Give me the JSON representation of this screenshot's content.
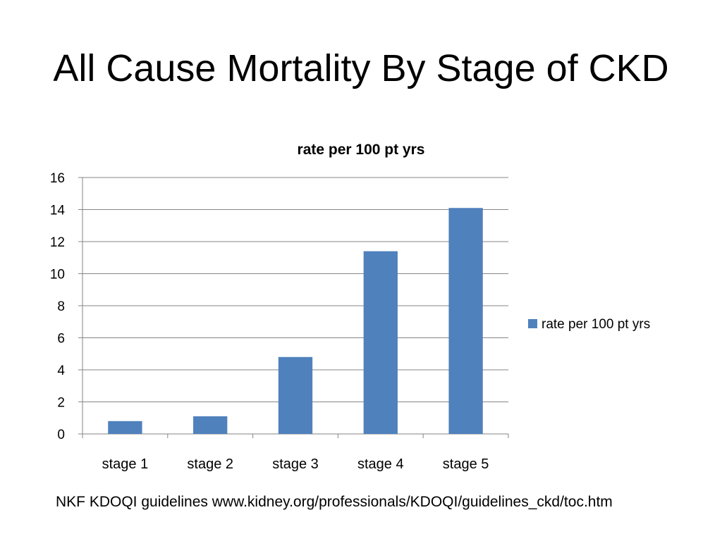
{
  "slide": {
    "title": "All Cause Mortality By Stage of CKD",
    "source": "NKF KDOQI guidelines  www.kidney.org/professionals/KDOQI/guidelines_ckd/toc.htm"
  },
  "chart_data": {
    "type": "bar",
    "title": "rate per 100 pt yrs",
    "xlabel": "",
    "ylabel": "",
    "categories": [
      "stage 1",
      "stage 2",
      "stage 3",
      "stage 4",
      "stage 5"
    ],
    "series": [
      {
        "name": "rate per 100 pt yrs",
        "values": [
          0.8,
          1.1,
          4.8,
          11.4,
          14.1
        ],
        "color": "#4F81BD"
      }
    ],
    "ylim": [
      0,
      16
    ],
    "yticks": [
      0,
      2,
      4,
      6,
      8,
      10,
      12,
      14,
      16
    ],
    "grid": true,
    "legend": "right"
  }
}
